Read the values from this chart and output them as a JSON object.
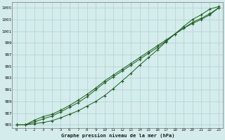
{
  "xlabel": "Graphe pression niveau de la mer (hPa)",
  "ylim": [
    984.5,
    1006
  ],
  "xlim": [
    -0.5,
    23.5
  ],
  "yticks": [
    985,
    987,
    989,
    991,
    993,
    995,
    997,
    999,
    1001,
    1003,
    1005
  ],
  "xticks": [
    0,
    1,
    2,
    3,
    4,
    5,
    6,
    7,
    8,
    9,
    10,
    11,
    12,
    13,
    14,
    15,
    16,
    17,
    18,
    19,
    20,
    21,
    22,
    23
  ],
  "bg_color": "#d4ecec",
  "grid_color": "#b0d0d0",
  "line_color": "#1a5c1a",
  "line1": [
    985.0,
    985.0,
    985.2,
    985.4,
    985.7,
    986.2,
    986.8,
    987.4,
    988.2,
    989.0,
    990.0,
    991.2,
    992.5,
    993.8,
    995.2,
    996.5,
    997.8,
    999.2,
    1000.5,
    1001.8,
    1003.0,
    1003.8,
    1004.8,
    1005.2
  ],
  "line2": [
    985.0,
    985.0,
    985.5,
    986.0,
    986.5,
    987.2,
    988.0,
    988.8,
    989.8,
    991.0,
    992.2,
    993.2,
    994.2,
    995.2,
    996.2,
    997.2,
    998.2,
    999.3,
    1000.5,
    1001.5,
    1002.5,
    1003.2,
    1004.0,
    1005.0
  ],
  "line3": [
    985.0,
    985.0,
    985.8,
    986.4,
    986.8,
    987.5,
    988.3,
    989.2,
    990.2,
    991.3,
    992.5,
    993.5,
    994.5,
    995.5,
    996.5,
    997.5,
    998.5,
    999.5,
    1000.5,
    1001.5,
    1002.3,
    1003.0,
    1003.8,
    1005.0
  ]
}
